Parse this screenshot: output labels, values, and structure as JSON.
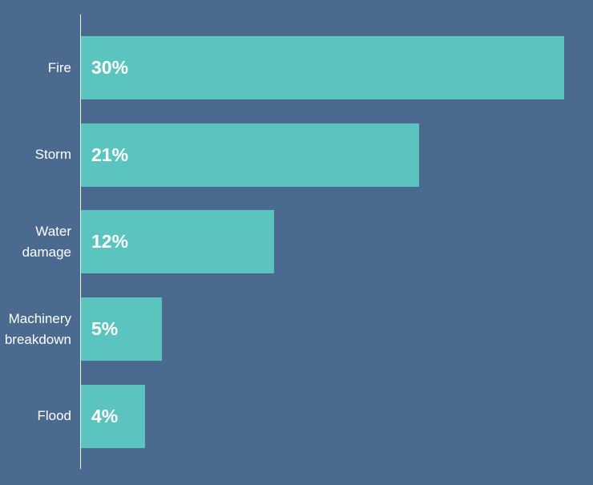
{
  "chart_data": {
    "type": "bar",
    "orientation": "horizontal",
    "categories": [
      "Fire",
      "Storm",
      "Water damage",
      "Machinery breakdown",
      "Flood"
    ],
    "values": [
      30,
      21,
      12,
      5,
      4
    ],
    "value_labels": [
      "30%",
      "21%",
      "12%",
      "5%",
      "4%"
    ],
    "color": "#5bc4bf"
  }
}
